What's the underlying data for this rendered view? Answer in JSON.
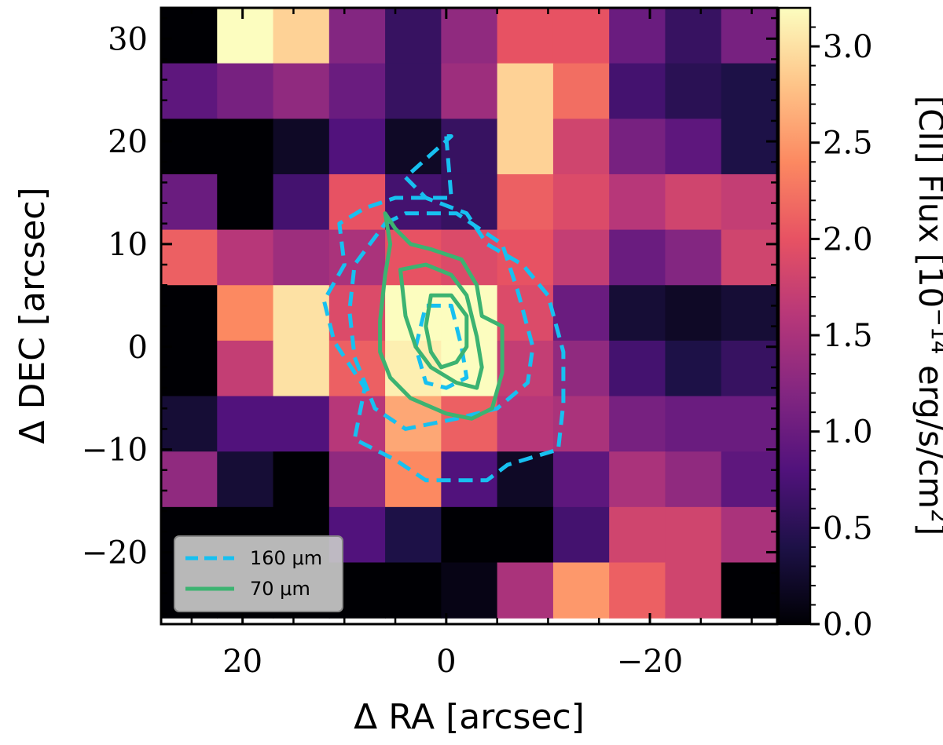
{
  "chart_data": {
    "type": "heatmap",
    "xlabel": "Δ RA [arcsec]",
    "ylabel": "Δ DEC [arcsec]",
    "xlim": [
      28,
      -32.5
    ],
    "ylim": [
      -27,
      33
    ],
    "x_ticks": [
      20,
      0,
      -20
    ],
    "x_tick_labels": [
      "20",
      "0",
      "−20"
    ],
    "y_ticks": [
      30,
      20,
      10,
      0,
      -10,
      -20
    ],
    "y_tick_labels": [
      "30",
      "20",
      "10",
      "0",
      "−10",
      "−20"
    ],
    "colorbar": {
      "label_prefix": "[CII] Flux [10",
      "label_exp": "−14",
      "label_mid": " erg/s/cm",
      "label_exp2": "2",
      "label_suffix": "]",
      "vmin": 0.0,
      "vmax": 3.2,
      "ticks": [
        0.0,
        0.5,
        1.0,
        1.5,
        2.0,
        2.5,
        3.0
      ],
      "tick_labels": [
        "0.0",
        "0.5",
        "1.0",
        "1.5",
        "2.0",
        "2.5",
        "3.0"
      ],
      "colormap": "magma"
    },
    "grid": {
      "x_edges": [
        28,
        22.5,
        17,
        11.5,
        6,
        0.5,
        -5,
        -10.5,
        -16,
        -21.5,
        -27,
        -32.5
      ],
      "y_edges": [
        33,
        27.6,
        22.2,
        16.8,
        11.4,
        6,
        0.6,
        -4.8,
        -10.2,
        -15.6,
        -21,
        -26.4
      ],
      "values": [
        [
          0.0,
          3.2,
          2.9,
          1.2,
          0.6,
          1.3,
          2.0,
          2.0,
          1.0,
          0.6,
          1.1
        ],
        [
          0.9,
          1.1,
          1.3,
          1.0,
          0.6,
          1.4,
          2.9,
          2.2,
          0.7,
          0.5,
          0.4
        ],
        [
          0.0,
          0.0,
          0.2,
          0.8,
          0.2,
          0.6,
          2.9,
          1.8,
          1.1,
          0.9,
          0.4
        ],
        [
          1.0,
          0.0,
          0.7,
          2.0,
          0.7,
          0.6,
          2.1,
          1.9,
          1.6,
          1.8,
          1.7
        ],
        [
          2.1,
          1.6,
          1.4,
          1.5,
          2.0,
          1.9,
          2.0,
          1.7,
          1.0,
          1.2,
          1.8
        ],
        [
          0.0,
          2.4,
          3.0,
          1.9,
          3.2,
          3.2,
          1.9,
          1.0,
          0.3,
          0.2,
          0.3
        ],
        [
          0.0,
          1.7,
          3.0,
          2.1,
          3.1,
          3.2,
          1.7,
          1.3,
          0.7,
          0.4,
          0.6
        ],
        [
          0.3,
          0.8,
          0.8,
          1.6,
          2.6,
          2.1,
          1.6,
          1.5,
          1.1,
          1.0,
          1.0
        ],
        [
          1.3,
          0.3,
          0.0,
          1.3,
          2.4,
          0.8,
          0.2,
          0.9,
          1.5,
          1.3,
          0.9
        ],
        [
          0.0,
          0.0,
          0.0,
          0.8,
          0.4,
          0.0,
          0.0,
          0.7,
          1.8,
          1.8,
          1.5
        ],
        [
          0.0,
          0.0,
          0.0,
          0.0,
          0.0,
          0.1,
          1.5,
          2.5,
          2.1,
          1.8,
          0.0
        ]
      ]
    },
    "legend": {
      "placement": "lower-left",
      "entries": [
        {
          "label": "160 μm",
          "color": "#17c0f0",
          "style": "dashed"
        },
        {
          "label": "70 μm",
          "color": "#3cb371",
          "style": "solid"
        }
      ]
    },
    "contours": [
      {
        "set": "160 μm",
        "color": "#17c0f0",
        "style": "dashed",
        "points": [
          [
            0,
            20.5
          ],
          [
            -0.5,
            14.5
          ],
          [
            5,
            14.5
          ],
          [
            8,
            13.5
          ],
          [
            10.5,
            12
          ],
          [
            10,
            8
          ],
          [
            12,
            4.5
          ],
          [
            11,
            0.5
          ],
          [
            8,
            -4
          ],
          [
            9,
            -9
          ],
          [
            5,
            -11
          ],
          [
            2,
            -13
          ],
          [
            -4,
            -13
          ],
          [
            -6,
            -11.5
          ],
          [
            -11,
            -10
          ],
          [
            -11.5,
            -5.5
          ],
          [
            -11.5,
            -0.5
          ],
          [
            -10,
            5
          ],
          [
            -7.5,
            8
          ],
          [
            -4,
            10
          ],
          [
            -2,
            13
          ],
          [
            2,
            14.5
          ],
          [
            4,
            16.5
          ],
          [
            -0.5,
            20.5
          ]
        ]
      },
      {
        "set": "160 μm",
        "color": "#17c0f0",
        "style": "dashed",
        "points": [
          [
            6,
            12
          ],
          [
            4,
            13
          ],
          [
            -1,
            13
          ],
          [
            -5.5,
            10
          ],
          [
            -7,
            5.5
          ],
          [
            -8.5,
            0
          ],
          [
            -8,
            -3.5
          ],
          [
            -5,
            -6
          ],
          [
            -1,
            -7
          ],
          [
            4,
            -8
          ],
          [
            7,
            -6
          ],
          [
            9,
            -1
          ],
          [
            9.5,
            3.5
          ],
          [
            9,
            8
          ],
          [
            6,
            12
          ]
        ]
      },
      {
        "set": "160 μm",
        "color": "#17c0f0",
        "style": "dashed",
        "points": [
          [
            -0.5,
            4
          ],
          [
            -1.5,
            0
          ],
          [
            -2,
            -3
          ],
          [
            0,
            -4
          ],
          [
            2,
            -3.5
          ],
          [
            3,
            0
          ],
          [
            2,
            4
          ],
          [
            -0.5,
            4
          ]
        ]
      },
      {
        "set": "70 μm",
        "color": "#3cb371",
        "style": "solid",
        "points": [
          [
            6,
            13
          ],
          [
            5,
            11.5
          ],
          [
            3.5,
            10
          ],
          [
            1.5,
            9.5
          ],
          [
            -1.5,
            8.5
          ],
          [
            -3,
            6
          ],
          [
            -3.5,
            3
          ],
          [
            -5.5,
            2
          ],
          [
            -5.5,
            -2.5
          ],
          [
            -4.5,
            -6
          ],
          [
            -2.5,
            -7
          ],
          [
            0,
            -6.5
          ],
          [
            3.5,
            -5
          ],
          [
            5.5,
            -3
          ],
          [
            6.5,
            -0.5
          ],
          [
            6.5,
            2.5
          ],
          [
            6,
            7
          ],
          [
            5.5,
            10
          ],
          [
            6,
            13
          ]
        ]
      },
      {
        "set": "70 μm",
        "color": "#3cb371",
        "style": "solid",
        "points": [
          [
            4.5,
            7.5
          ],
          [
            2,
            8
          ],
          [
            -0.5,
            7
          ],
          [
            -2,
            5
          ],
          [
            -3,
            1
          ],
          [
            -3.5,
            -2
          ],
          [
            -3,
            -4
          ],
          [
            -1,
            -3.5
          ],
          [
            1.5,
            -2
          ],
          [
            3,
            0
          ],
          [
            4,
            3
          ],
          [
            4.5,
            7.5
          ]
        ]
      },
      {
        "set": "70 μm",
        "color": "#3cb371",
        "style": "solid",
        "points": [
          [
            1.5,
            5
          ],
          [
            -0.5,
            5
          ],
          [
            -2,
            3
          ],
          [
            -2,
            0
          ],
          [
            -1,
            -1.5
          ],
          [
            0.5,
            -2
          ],
          [
            1.5,
            -0.5
          ],
          [
            2,
            2
          ],
          [
            1.5,
            5
          ]
        ]
      }
    ]
  }
}
